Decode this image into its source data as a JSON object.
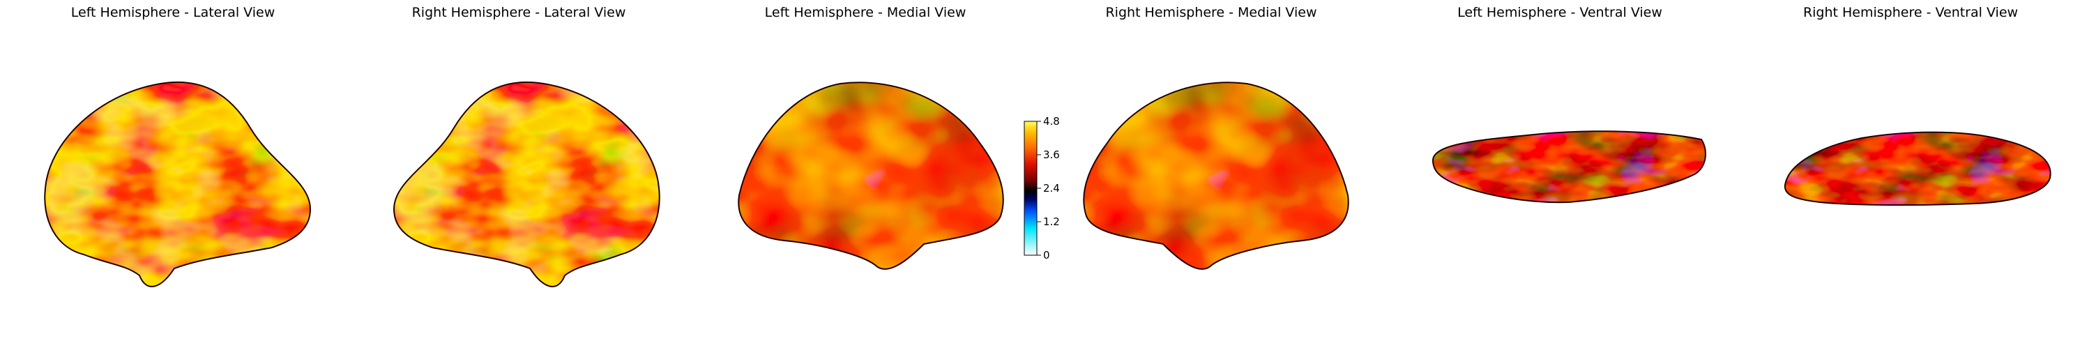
{
  "figure": {
    "panels": [
      {
        "title": "Left Hemisphere - Lateral View",
        "view": "lateral",
        "hemisphere": "left"
      },
      {
        "title": "Right Hemisphere - Lateral View",
        "view": "lateral",
        "hemisphere": "right"
      },
      {
        "title": "Left Hemisphere - Medial View",
        "view": "medial",
        "hemisphere": "left"
      },
      {
        "title": "Right Hemisphere - Medial View",
        "view": "medial",
        "hemisphere": "right"
      },
      {
        "title": "Left Hemisphere - Ventral View",
        "view": "ventral",
        "hemisphere": "left"
      },
      {
        "title": "Right Hemisphere - Ventral View",
        "view": "ventral",
        "hemisphere": "right"
      }
    ],
    "colorbar": {
      "ticks": [
        "4.8",
        "3.6",
        "2.4",
        "1.2",
        "0"
      ],
      "range": [
        0,
        4.8
      ],
      "colormap": [
        "#ffffff",
        "#00e5ff",
        "#0050ff",
        "#000060",
        "#000000",
        "#7a0000",
        "#e01000",
        "#ff6a00",
        "#ffc000",
        "#ffff60"
      ]
    },
    "colors": {
      "blue": "#1030d0",
      "cyan": "#40c8ff",
      "dark_red": "#7a0000",
      "red": "#d81400",
      "orange": "#ff7a00",
      "yellow": "#ffd400"
    }
  }
}
